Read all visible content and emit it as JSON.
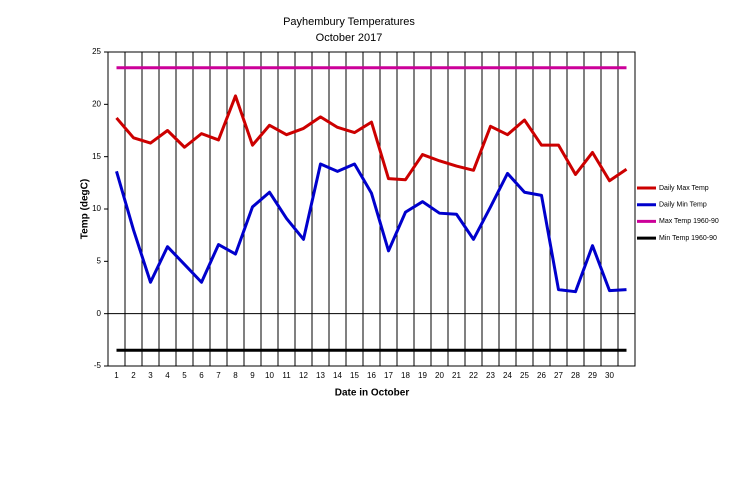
{
  "chart_data": {
    "type": "line",
    "title": "Payhembury Temperatures",
    "subtitle": "October 2017",
    "x_label": "Date in October",
    "y_label": "Temp (degC)",
    "categories": [
      "1",
      "2",
      "3",
      "4",
      "5",
      "6",
      "7",
      "8",
      "9",
      "10",
      "11",
      "12",
      "13",
      "14",
      "15",
      "16",
      "17",
      "18",
      "19",
      "20",
      "21",
      "22",
      "23",
      "24",
      "25",
      "26",
      "27",
      "28",
      "29",
      "30",
      null
    ],
    "ylim": [
      -5,
      25
    ],
    "yticks": [
      -5,
      0,
      5,
      10,
      15,
      20,
      25
    ],
    "grid": true,
    "legend": "right",
    "series": [
      {
        "name": "Daily Max Temp",
        "color": "#cc0000",
        "values": [
          18.7,
          16.8,
          16.3,
          17.5,
          15.9,
          17.2,
          16.6,
          20.8,
          16.1,
          18.0,
          17.1,
          17.7,
          18.8,
          17.8,
          17.3,
          18.3,
          12.9,
          12.8,
          15.2,
          14.6,
          14.1,
          13.7,
          17.9,
          17.1,
          18.5,
          16.1,
          16.1,
          13.3,
          15.4,
          12.7,
          13.8
        ]
      },
      {
        "name": "Daily Min Temp",
        "color": "#0000cc",
        "values": [
          13.6,
          8.0,
          3.0,
          6.4,
          4.7,
          3.0,
          6.6,
          5.7,
          10.2,
          11.6,
          9.1,
          7.1,
          14.3,
          13.6,
          14.3,
          11.5,
          6.0,
          9.7,
          10.7,
          9.6,
          9.5,
          7.1,
          10.2,
          13.4,
          11.6,
          11.3,
          2.3,
          2.1,
          6.5,
          2.2,
          2.3
        ]
      },
      {
        "name": "Max Temp 1960-90",
        "color": "#cc0099",
        "values": [
          23.5,
          23.5,
          23.5,
          23.5,
          23.5,
          23.5,
          23.5,
          23.5,
          23.5,
          23.5,
          23.5,
          23.5,
          23.5,
          23.5,
          23.5,
          23.5,
          23.5,
          23.5,
          23.5,
          23.5,
          23.5,
          23.5,
          23.5,
          23.5,
          23.5,
          23.5,
          23.5,
          23.5,
          23.5,
          23.5,
          23.5
        ]
      },
      {
        "name": "Min Temp 1960-90",
        "color": "#000000",
        "values": [
          -3.5,
          -3.5,
          -3.5,
          -3.5,
          -3.5,
          -3.5,
          -3.5,
          -3.5,
          -3.5,
          -3.5,
          -3.5,
          -3.5,
          -3.5,
          -3.5,
          -3.5,
          -3.5,
          -3.5,
          -3.5,
          -3.5,
          -3.5,
          -3.5,
          -3.5,
          -3.5,
          -3.5,
          -3.5,
          -3.5,
          -3.5,
          -3.5,
          -3.5,
          -3.5,
          -3.5
        ]
      }
    ]
  }
}
